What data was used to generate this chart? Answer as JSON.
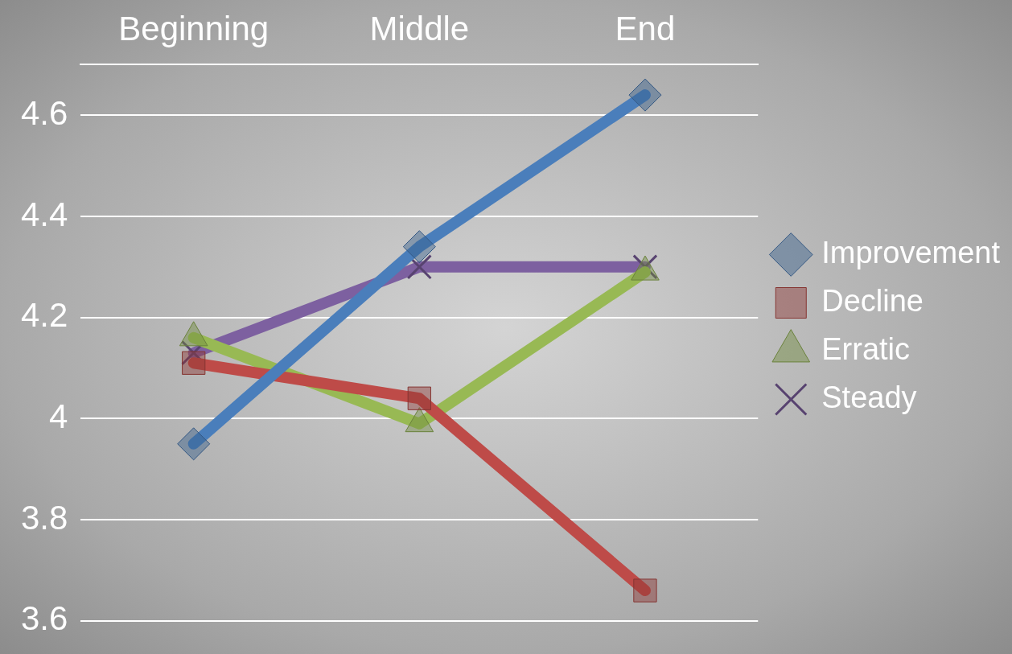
{
  "chart_data": {
    "type": "line",
    "categories": [
      "Beginning",
      "Middle",
      "End"
    ],
    "series": [
      {
        "name": "Improvement",
        "color": "#4a7ebb",
        "values": [
          3.95,
          4.34,
          4.64
        ],
        "marker": "diamond"
      },
      {
        "name": "Decline",
        "color": "#be4b48",
        "values": [
          4.11,
          4.04,
          3.66
        ],
        "marker": "square"
      },
      {
        "name": "Erratic",
        "color": "#98b954",
        "values": [
          4.16,
          3.99,
          4.29
        ],
        "marker": "triangle"
      },
      {
        "name": "Steady",
        "color": "#7d60a0",
        "values": [
          4.13,
          4.3,
          4.3
        ],
        "marker": "cross"
      }
    ],
    "ylim": [
      3.6,
      4.7
    ],
    "yticks": [
      3.6,
      3.8,
      4,
      4.2,
      4.4,
      4.6
    ],
    "grid": "y",
    "legend": "right",
    "line_style": "solid"
  }
}
